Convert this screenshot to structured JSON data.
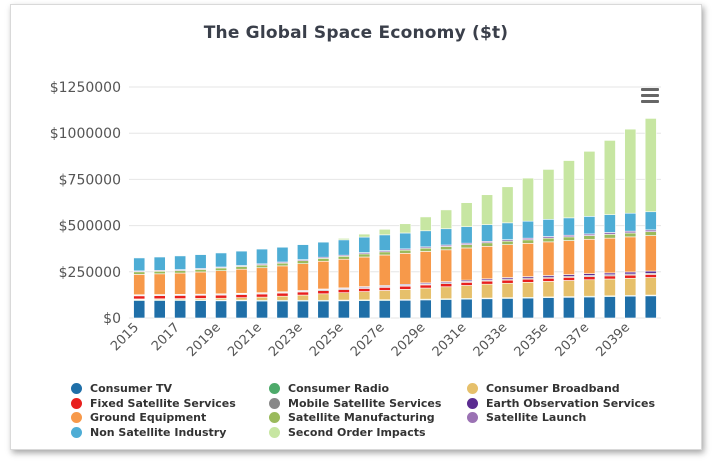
{
  "menu_icon": "hamburger-menu-icon",
  "chart_data": {
    "type": "bar",
    "stacked": true,
    "title": "The Global Space Economy ($t)",
    "xlabel": "",
    "ylabel": "",
    "ylim": [
      0,
      1250000
    ],
    "y_ticks": [
      "$0",
      "$250000",
      "$500000",
      "$750000",
      "$1000000",
      "$1250000"
    ],
    "grid": true,
    "legend_position": "bottom",
    "categories": [
      "2015",
      "2016",
      "2017",
      "2018",
      "2019e",
      "2020e",
      "2021e",
      "2022e",
      "2023e",
      "2024e",
      "2025e",
      "2026e",
      "2027e",
      "2028e",
      "2029e",
      "2030e",
      "2031e",
      "2032e",
      "2033e",
      "2034e",
      "2035e",
      "2036e",
      "2037e",
      "2038e",
      "2039e",
      "2040e"
    ],
    "x_tick_labels": [
      "2015",
      "2017",
      "2019e",
      "2021e",
      "2023e",
      "2025e",
      "2027e",
      "2029e",
      "2031e",
      "2033e",
      "2035e",
      "2037e",
      "2039e"
    ],
    "series": [
      {
        "name": "Consumer TV",
        "color": "#1f6fa8",
        "values": [
          95000,
          95000,
          95000,
          94000,
          93000,
          93000,
          92000,
          92000,
          92000,
          92000,
          93000,
          94000,
          95000,
          96000,
          98000,
          100000,
          102000,
          104000,
          106000,
          108000,
          110000,
          112000,
          114000,
          116000,
          118000,
          120000
        ]
      },
      {
        "name": "Consumer Radio",
        "color": "#4daa6a",
        "values": [
          4000,
          4000,
          4000,
          4000,
          4000,
          4000,
          4000,
          4000,
          4000,
          4000,
          4000,
          4000,
          4000,
          4000,
          4000,
          4000,
          4000,
          4000,
          4000,
          4000,
          4000,
          4000,
          4000,
          4000,
          4000,
          4000
        ]
      },
      {
        "name": "Consumer Broadband",
        "color": "#e6c06b",
        "values": [
          4000,
          5000,
          6000,
          8000,
          10000,
          13000,
          17000,
          22000,
          28000,
          35000,
          40000,
          45000,
          50000,
          55000,
          60000,
          65000,
          70000,
          75000,
          78000,
          81000,
          84000,
          87000,
          89000,
          91000,
          93000,
          95000
        ]
      },
      {
        "name": "Fixed Satellite Services",
        "color": "#e8201e",
        "values": [
          17000,
          17000,
          17000,
          17000,
          17000,
          17000,
          17000,
          17000,
          17000,
          17000,
          17000,
          17000,
          17000,
          17000,
          17000,
          17000,
          17000,
          17000,
          17000,
          17000,
          17000,
          17000,
          17000,
          17000,
          17000,
          17000
        ]
      },
      {
        "name": "Mobile Satellite Services",
        "color": "#888888",
        "values": [
          4000,
          4000,
          4000,
          4000,
          4000,
          4000,
          4000,
          4000,
          4000,
          5000,
          5000,
          5000,
          5000,
          5000,
          5000,
          5000,
          5000,
          5000,
          6000,
          6000,
          6000,
          6000,
          6000,
          6000,
          6000,
          6000
        ]
      },
      {
        "name": "Earth Observation Services",
        "color": "#5b2c91",
        "values": [
          2000,
          2000,
          2000,
          2000,
          3000,
          3000,
          3000,
          3000,
          4000,
          4000,
          4000,
          5000,
          5000,
          5000,
          6000,
          6000,
          7000,
          7000,
          8000,
          8000,
          9000,
          9000,
          10000,
          10000,
          11000,
          12000
        ]
      },
      {
        "name": "Ground Equipment",
        "color": "#f7994a",
        "values": [
          110000,
          112000,
          115000,
          120000,
          125000,
          130000,
          135000,
          140000,
          145000,
          150000,
          155000,
          160000,
          165000,
          168000,
          170000,
          172000,
          174000,
          176000,
          178000,
          180000,
          182000,
          184000,
          186000,
          188000,
          190000,
          192000
        ]
      },
      {
        "name": "Satellite Manufacturing",
        "color": "#9aba5c",
        "values": [
          14000,
          14000,
          14000,
          14000,
          15000,
          15000,
          15000,
          15000,
          16000,
          16000,
          16000,
          17000,
          17000,
          17000,
          18000,
          18000,
          18000,
          19000,
          19000,
          19000,
          20000,
          20000,
          20000,
          21000,
          21000,
          21000
        ]
      },
      {
        "name": "Satellite Launch",
        "color": "#9b72b4",
        "values": [
          5000,
          5000,
          5000,
          5000,
          5000,
          5000,
          6000,
          6000,
          6000,
          6000,
          6000,
          7000,
          7000,
          7000,
          7000,
          8000,
          8000,
          8000,
          8000,
          9000,
          9000,
          9000,
          9000,
          10000,
          10000,
          10000
        ]
      },
      {
        "name": "Non Satellite Industry",
        "color": "#4eadd5",
        "values": [
          70000,
          72000,
          74000,
          75000,
          76000,
          78000,
          80000,
          80000,
          81000,
          82000,
          83000,
          84000,
          85000,
          86000,
          87000,
          88000,
          89000,
          90000,
          91000,
          92000,
          93000,
          94000,
          95000,
          96000,
          97000,
          98000
        ]
      },
      {
        "name": "Second Order Impacts",
        "color": "#c7e6a2",
        "values": [
          0,
          0,
          0,
          0,
          0,
          0,
          0,
          0,
          0,
          2000,
          8000,
          16000,
          30000,
          50000,
          75000,
          102000,
          130000,
          162000,
          195000,
          233000,
          270000,
          310000,
          352000,
          402000,
          455000,
          505000
        ]
      }
    ]
  }
}
